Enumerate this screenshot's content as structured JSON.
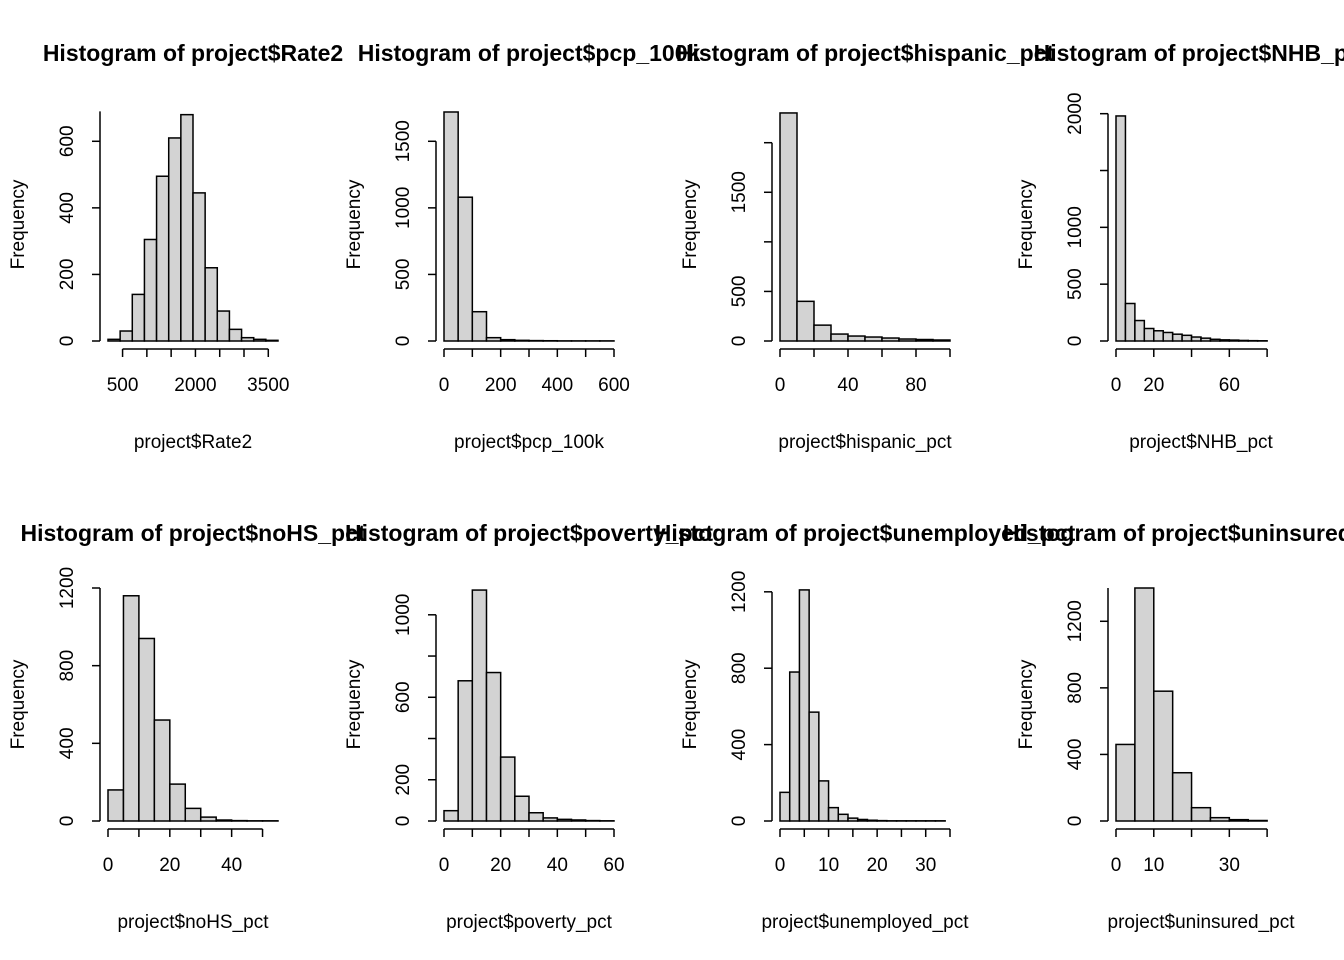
{
  "colors": {
    "bar_fill": "#d3d3d3",
    "bar_stroke": "#000000",
    "background": "#ffffff"
  },
  "chart_data": [
    {
      "type": "bar",
      "histogram": true,
      "title": "Histogram of project$Rate2",
      "xlabel": "project$Rate2",
      "ylabel": "Frequency",
      "bin_start": 200,
      "bin_width": 250,
      "values": [
        5,
        30,
        140,
        305,
        495,
        610,
        680,
        445,
        220,
        90,
        35,
        10,
        5,
        2
      ],
      "xlim": [
        200,
        3700
      ],
      "ylim": [
        0,
        700
      ],
      "xticks": [
        500,
        2000,
        3500
      ],
      "xtick_labels": [
        "500",
        "2000",
        "3500"
      ],
      "xtick_axis": [
        500,
        1000,
        1500,
        2000,
        2500,
        3000,
        3500
      ],
      "yticks": [
        0,
        200,
        400,
        600
      ],
      "ytick_labels": [
        "0",
        "200",
        "400",
        "600"
      ],
      "yaxis_top": 690
    },
    {
      "type": "bar",
      "histogram": true,
      "title": "Histogram of project$pcp_100k",
      "xlabel": "project$pcp_100k",
      "ylabel": "Frequency",
      "bin_start": 0,
      "bin_width": 50,
      "values": [
        1720,
        1080,
        220,
        25,
        10,
        5,
        3,
        2,
        1,
        1,
        1,
        1
      ],
      "xlim": [
        0,
        600
      ],
      "ylim": [
        0,
        1750
      ],
      "xticks": [
        0,
        200,
        400,
        600
      ],
      "xtick_labels": [
        "0",
        "200",
        "400",
        "600"
      ],
      "xtick_axis": [
        0,
        100,
        200,
        300,
        400,
        500,
        600
      ],
      "yticks": [
        0,
        500,
        1000,
        1500
      ],
      "ytick_labels": [
        "0",
        "500",
        "1000",
        "1500"
      ],
      "yaxis_top": 1500
    },
    {
      "type": "bar",
      "histogram": true,
      "title": "Histogram of project$hispanic_pct",
      "xlabel": "project$hispanic_pct",
      "ylabel": "Frequency",
      "bin_start": 0,
      "bin_width": 10,
      "values": [
        2300,
        400,
        160,
        70,
        50,
        40,
        30,
        20,
        15,
        10
      ],
      "xlim": [
        0,
        100
      ],
      "ylim": [
        0,
        2350
      ],
      "xticks": [
        0,
        40,
        80
      ],
      "xtick_labels": [
        "0",
        "40",
        "80"
      ],
      "xtick_axis": [
        0,
        20,
        40,
        60,
        80,
        100
      ],
      "yticks": [
        0,
        500,
        1500
      ],
      "ytick_labels": [
        "0",
        "500",
        "1500"
      ],
      "yaxis_minor": [
        1000,
        2000
      ],
      "yaxis_top": 2000
    },
    {
      "type": "bar",
      "histogram": true,
      "title": "Histogram of project$NHB_pct",
      "xlabel": "project$NHB_pct",
      "ylabel": "Frequency",
      "bin_start": 0,
      "bin_width": 5,
      "values": [
        1980,
        330,
        180,
        110,
        90,
        75,
        60,
        50,
        35,
        25,
        15,
        10,
        8,
        5,
        3,
        2
      ],
      "xlim": [
        0,
        90
      ],
      "ylim": [
        0,
        2050
      ],
      "xticks": [
        0,
        20,
        60
      ],
      "xtick_labels": [
        "0",
        "20",
        "60"
      ],
      "xtick_axis": [
        0,
        20,
        40,
        60,
        80
      ],
      "yticks": [
        0,
        500,
        1000,
        2000
      ],
      "ytick_labels": [
        "0",
        "500",
        "1000",
        "2000"
      ],
      "yaxis_minor": [
        1500
      ],
      "yaxis_top": 2000
    },
    {
      "type": "bar",
      "histogram": true,
      "title": "Histogram of project$noHS_pct",
      "xlabel": "project$noHS_pct",
      "ylabel": "Frequency",
      "bin_start": 0,
      "bin_width": 5,
      "values": [
        160,
        1160,
        940,
        520,
        190,
        65,
        20,
        5,
        2,
        1,
        1
      ],
      "xlim": [
        0,
        55
      ],
      "ylim": [
        0,
        1200
      ],
      "xticks": [
        0,
        20,
        40
      ],
      "xtick_labels": [
        "0",
        "20",
        "40"
      ],
      "xtick_axis": [
        0,
        10,
        20,
        30,
        40,
        50
      ],
      "yticks": [
        0,
        400,
        800,
        1200
      ],
      "ytick_labels": [
        "0",
        "400",
        "800",
        "1200"
      ],
      "yaxis_top": 1200
    },
    {
      "type": "bar",
      "histogram": true,
      "title": "Histogram of project$poverty_pct",
      "xlabel": "project$poverty_pct",
      "ylabel": "Frequency",
      "bin_start": 0,
      "bin_width": 5,
      "values": [
        50,
        680,
        1120,
        720,
        310,
        120,
        40,
        15,
        8,
        5,
        2,
        1
      ],
      "xlim": [
        0,
        60
      ],
      "ylim": [
        0,
        1130
      ],
      "xticks": [
        0,
        20,
        40,
        60
      ],
      "xtick_labels": [
        "0",
        "20",
        "40",
        "60"
      ],
      "xtick_axis": [
        0,
        10,
        20,
        30,
        40,
        50,
        60
      ],
      "yticks": [
        0,
        200,
        600,
        1000
      ],
      "ytick_labels": [
        "0",
        "200",
        "600",
        "1000"
      ],
      "yaxis_minor": [
        400,
        800
      ],
      "yaxis_top": 1000
    },
    {
      "type": "bar",
      "histogram": true,
      "title": "Histogram of project$unemployed_pct",
      "xlabel": "project$unemployed_pct",
      "ylabel": "Frequency",
      "bin_start": 0,
      "bin_width": 2,
      "values": [
        150,
        780,
        1210,
        570,
        210,
        70,
        35,
        15,
        8,
        4,
        2,
        1,
        1,
        1,
        1,
        1,
        1
      ],
      "xlim": [
        0,
        35
      ],
      "ylim": [
        0,
        1220
      ],
      "xticks": [
        0,
        10,
        20,
        30
      ],
      "xtick_labels": [
        "0",
        "10",
        "20",
        "30"
      ],
      "xtick_axis": [
        0,
        5,
        10,
        15,
        20,
        25,
        30,
        35
      ],
      "yticks": [
        0,
        400,
        800,
        1200
      ],
      "ytick_labels": [
        "0",
        "400",
        "800",
        "1200"
      ],
      "yaxis_top": 1200
    },
    {
      "type": "bar",
      "histogram": true,
      "title": "Histogram of project$uninsured_pct",
      "xlabel": "project$uninsured_pct",
      "ylabel": "Frequency",
      "bin_start": 0,
      "bin_width": 5,
      "values": [
        460,
        1400,
        780,
        290,
        80,
        20,
        8,
        3
      ],
      "xlim": [
        0,
        45
      ],
      "ylim": [
        0,
        1400
      ],
      "xticks": [
        0,
        10,
        30
      ],
      "xtick_labels": [
        "0",
        "10",
        "30"
      ],
      "xtick_axis": [
        0,
        10,
        20,
        30,
        40
      ],
      "yticks": [
        0,
        400,
        800,
        1200
      ],
      "ytick_labels": [
        "0",
        "400",
        "800",
        "1200"
      ],
      "yaxis_top": 1400
    }
  ]
}
